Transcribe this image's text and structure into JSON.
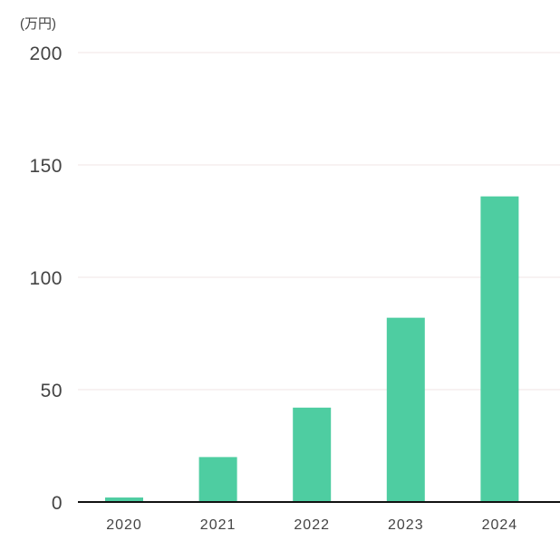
{
  "chart_data": {
    "type": "bar",
    "unit_label": "(万円)",
    "categories": [
      "2020",
      "2021",
      "2022",
      "2023",
      "2024"
    ],
    "values": [
      2,
      20,
      42,
      82,
      136
    ],
    "yticks": [
      0,
      50,
      100,
      150,
      200
    ],
    "ylim": [
      0,
      200
    ],
    "grid": true,
    "bar_color": "#4ecda1"
  }
}
